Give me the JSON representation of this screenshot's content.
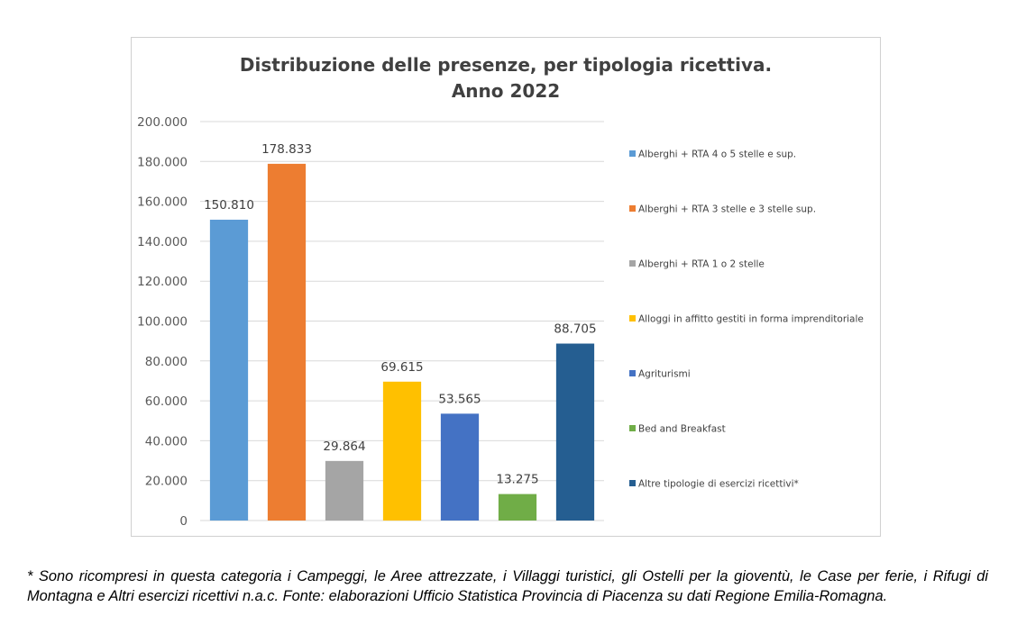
{
  "chart_data": {
    "type": "bar",
    "title_lines": [
      "Distribuzione delle presenze, per tipologia ricettiva.",
      "Anno 2022"
    ],
    "categories": [
      "Alberghi + RTA 4 o 5 stelle e sup.",
      "Alberghi + RTA 3 stelle e 3 stelle sup.",
      "Alberghi + RTA 1 o 2 stelle",
      "Alloggi in affitto gestiti in forma imprenditoriale",
      "Agriturismi",
      "Bed and Breakfast",
      "Altre tipologie di esercizi ricettivi*"
    ],
    "values": [
      150810,
      178833,
      29864,
      69615,
      53565,
      13275,
      88705
    ],
    "data_labels": [
      "150.810",
      "178.833",
      "29.864",
      "69.615",
      "53.565",
      "13.275",
      "88.705"
    ],
    "colors": [
      "#5B9BD5",
      "#ED7D31",
      "#A5A5A5",
      "#FFC000",
      "#4472C4",
      "#70AD47",
      "#255E91"
    ],
    "ylim": [
      0,
      200000
    ],
    "y_ticks": [
      0,
      20000,
      40000,
      60000,
      80000,
      100000,
      120000,
      140000,
      160000,
      180000,
      200000
    ],
    "y_tick_labels": [
      "0",
      "20.000",
      "40.000",
      "60.000",
      "80.000",
      "100.000",
      "120.000",
      "140.000",
      "160.000",
      "180.000",
      "200.000"
    ],
    "grid": true,
    "legend_position": "right",
    "xlabel": "",
    "ylabel": ""
  },
  "footnote": "* Sono ricompresi in questa categoria i Campeggi, le Aree attrezzate, i Villaggi turistici, gli Ostelli per la gioventù, le Case per ferie, i Rifugi di Montagna e Altri esercizi ricettivi n.a.c. Fonte: elaborazioni Ufficio Statistica Provincia di Piacenza su dati Regione Emilia-Romagna."
}
